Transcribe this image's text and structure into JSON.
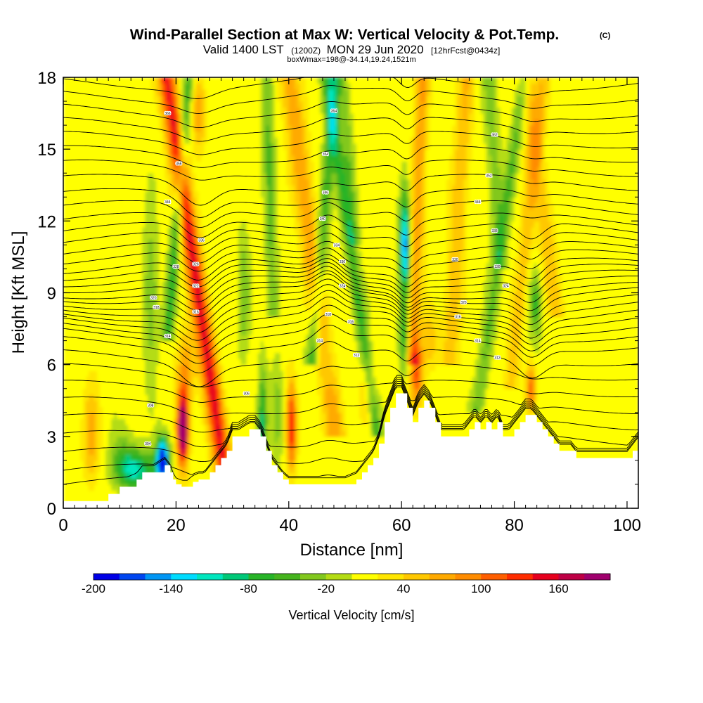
{
  "chart_data": {
    "type": "heatmap",
    "title": "Wind-Parallel Section at Max W: Vertical Velocity & Pot.Temp.",
    "title_mark": "(C)",
    "subtitle": {
      "valid": "Valid 1400 LST",
      "zulu": "(1200Z)",
      "date": "MON 29 Jun 2020",
      "forecast": "[12hrFcst@0434z]"
    },
    "box_info": "boxWmax=198@-34.14,19.24,1521m",
    "xlabel": "Distance [nm]",
    "ylabel": "Height [Kft MSL]",
    "xlim": [
      0,
      102
    ],
    "ylim": [
      0,
      18
    ],
    "xticks": [
      "0",
      "20",
      "40",
      "60",
      "80",
      "100"
    ],
    "yticks": [
      "0",
      "3",
      "6",
      "9",
      "12",
      "15",
      "18"
    ],
    "colorbar": {
      "label": "Vertical Velocity [cm/s]",
      "range": [
        -200,
        200
      ],
      "step": 20,
      "tick_labels": [
        "-200",
        "-140",
        "-80",
        "-20",
        "40",
        "100",
        "160"
      ],
      "colors": [
        "#0000e6",
        "#0046f0",
        "#0096f5",
        "#00dcff",
        "#00e6be",
        "#00c878",
        "#28b428",
        "#46b41e",
        "#82c81e",
        "#b4dc14",
        "#ffff00",
        "#ffe600",
        "#ffc800",
        "#ffaa00",
        "#ff8c00",
        "#ff5f00",
        "#ff2d00",
        "#e6001e",
        "#be0046",
        "#a0006e"
      ]
    },
    "vertical_velocity_cores": [
      {
        "x": 21,
        "z": 3.2,
        "w": 198
      },
      {
        "x": 25,
        "z": 15,
        "w": 140
      },
      {
        "x": 18,
        "z": 2.2,
        "w": -200
      },
      {
        "x": 40.5,
        "z": 3.5,
        "w": 120
      },
      {
        "x": 60.5,
        "z": 11,
        "w": -140
      },
      {
        "x": 62.5,
        "z": 5.5,
        "w": 100
      },
      {
        "x": 83,
        "z": 5,
        "w": 100
      }
    ],
    "terrain": {
      "x": [
        0,
        2,
        3,
        5,
        7,
        8,
        10,
        13,
        14,
        16,
        18,
        19,
        19.5,
        20,
        21,
        22,
        23,
        24,
        25,
        26,
        27,
        28,
        29,
        30,
        31,
        33,
        34,
        35,
        36,
        37,
        38,
        39,
        40,
        41,
        42,
        43,
        44,
        46,
        48,
        50,
        52,
        53,
        54,
        55,
        56,
        57,
        58,
        59,
        60,
        61,
        62,
        63,
        64,
        65,
        66,
        67,
        68,
        69,
        70,
        71,
        72,
        73,
        74,
        75,
        76,
        77,
        78,
        79,
        80,
        81,
        82,
        83,
        84,
        85,
        86,
        87,
        88,
        89,
        90,
        91,
        92,
        93,
        94,
        95,
        96,
        97,
        98,
        99,
        100,
        101,
        102
      ],
      "z": [
        0.3,
        0.3,
        0.3,
        0.3,
        0.3,
        0.6,
        0.9,
        1.2,
        1.5,
        1.5,
        1.8,
        1.5,
        1.2,
        1.0,
        0.9,
        0.9,
        1.1,
        1.2,
        1.2,
        1.5,
        1.8,
        2.1,
        2.4,
        3.0,
        3.0,
        3.3,
        3.3,
        3.0,
        2.4,
        1.8,
        1.5,
        1.2,
        1.0,
        1.0,
        1.0,
        1.0,
        1.0,
        1.0,
        1.0,
        1.0,
        1.2,
        1.5,
        1.8,
        2.1,
        2.7,
        3.6,
        4.2,
        4.8,
        4.8,
        4.2,
        3.6,
        4.2,
        4.5,
        4.2,
        3.6,
        3.0,
        3.0,
        3.0,
        3.0,
        3.0,
        3.3,
        3.6,
        3.3,
        3.6,
        3.3,
        3.6,
        3.0,
        3.0,
        3.3,
        3.6,
        3.9,
        3.9,
        3.6,
        3.3,
        3.0,
        2.7,
        2.4,
        2.4,
        2.4,
        2.1,
        2.1,
        2.1,
        2.1,
        2.1,
        2.1,
        2.1,
        2.1,
        2.1,
        2.1,
        2.4,
        2.7
      ]
    },
    "isentrope_labels": [
      {
        "x": 18.5,
        "z": 16.5,
        "text": "366"
      },
      {
        "x": 20.5,
        "z": 14.4,
        "text": "356"
      },
      {
        "x": 18.5,
        "z": 12.8,
        "text": "344"
      },
      {
        "x": 24.5,
        "z": 11.2,
        "text": "336"
      },
      {
        "x": 20,
        "z": 10.1,
        "text": "328"
      },
      {
        "x": 23.5,
        "z": 10.2,
        "text": "326"
      },
      {
        "x": 23.5,
        "z": 9.3,
        "text": "322"
      },
      {
        "x": 16,
        "z": 8.8,
        "text": "320"
      },
      {
        "x": 16.5,
        "z": 8.4,
        "text": "318"
      },
      {
        "x": 23.5,
        "z": 8.2,
        "text": "316"
      },
      {
        "x": 18.5,
        "z": 7.2,
        "text": "314"
      },
      {
        "x": 15.5,
        "z": 4.3,
        "text": "308"
      },
      {
        "x": 15,
        "z": 2.7,
        "text": "304"
      },
      {
        "x": 32.5,
        "z": 4.8,
        "text": "306"
      },
      {
        "x": 48,
        "z": 16.6,
        "text": "364"
      },
      {
        "x": 46.5,
        "z": 14.8,
        "text": "354"
      },
      {
        "x": 46.5,
        "z": 13.2,
        "text": "346"
      },
      {
        "x": 46,
        "z": 12.1,
        "text": "340"
      },
      {
        "x": 48.5,
        "z": 11.0,
        "text": "334"
      },
      {
        "x": 49.5,
        "z": 10.3,
        "text": "330"
      },
      {
        "x": 49.5,
        "z": 9.3,
        "text": "324"
      },
      {
        "x": 47,
        "z": 8.1,
        "text": "318"
      },
      {
        "x": 51,
        "z": 7.8,
        "text": "316"
      },
      {
        "x": 45.5,
        "z": 7.0,
        "text": "314"
      },
      {
        "x": 52,
        "z": 6.4,
        "text": "312"
      },
      {
        "x": 76.5,
        "z": 15.6,
        "text": "362"
      },
      {
        "x": 75.5,
        "z": 13.9,
        "text": "352"
      },
      {
        "x": 73.5,
        "z": 12.8,
        "text": "344"
      },
      {
        "x": 76.5,
        "z": 11.6,
        "text": "338"
      },
      {
        "x": 69.5,
        "z": 10.4,
        "text": "330"
      },
      {
        "x": 77,
        "z": 10.1,
        "text": "328"
      },
      {
        "x": 78.5,
        "z": 9.3,
        "text": "324"
      },
      {
        "x": 71,
        "z": 8.6,
        "text": "320"
      },
      {
        "x": 70,
        "z": 8.0,
        "text": "316"
      },
      {
        "x": 73.5,
        "z": 7.0,
        "text": "314"
      },
      {
        "x": 77,
        "z": 6.3,
        "text": "312"
      }
    ]
  }
}
